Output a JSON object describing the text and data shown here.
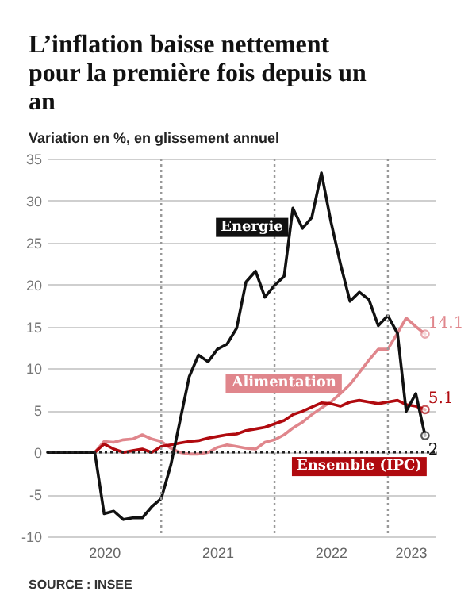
{
  "chart_data": {
    "type": "line",
    "title": "L’inflation baisse nettement pour la première fois depuis un an",
    "subtitle": "Variation en %, en glissement annuel",
    "annotations": [
      "SOURCE : INSEE"
    ],
    "x": [
      "2020-01",
      "2020-02",
      "2020-03",
      "2020-04",
      "2020-05",
      "2020-06",
      "2020-07",
      "2020-08",
      "2020-09",
      "2020-10",
      "2020-11",
      "2020-12",
      "2021-01",
      "2021-02",
      "2021-03",
      "2021-04",
      "2021-05",
      "2021-06",
      "2021-07",
      "2021-08",
      "2021-09",
      "2021-10",
      "2021-11",
      "2021-12",
      "2022-01",
      "2022-02",
      "2022-03",
      "2022-04",
      "2022-05",
      "2022-06",
      "2022-07",
      "2022-08",
      "2022-09",
      "2022-10",
      "2022-11",
      "2022-12",
      "2023-01",
      "2023-02",
      "2023-03",
      "2023-04",
      "2023-05"
    ],
    "series": [
      {
        "name": "Alimentation",
        "color": "#e0868c",
        "values": [
          null,
          null,
          null,
          null,
          null,
          0,
          1.3,
          1.2,
          1.5,
          1.6,
          2.1,
          1.6,
          1.3,
          0.5,
          0,
          -0.2,
          -0.2,
          0,
          0.6,
          0.9,
          0.7,
          0.5,
          0.4,
          1.2,
          1.5,
          2.1,
          2.9,
          3.6,
          4.5,
          5.3,
          6.0,
          7.0,
          8.1,
          9.5,
          11.0,
          12.3,
          12.3,
          14.2,
          16.0,
          15.0,
          14.1
        ],
        "value_labels": [
          null,
          null,
          null,
          null,
          null,
          null,
          null,
          null,
          null,
          null,
          null,
          null,
          null,
          null,
          null,
          null,
          null,
          null,
          null,
          null,
          null,
          null,
          null,
          null,
          null,
          null,
          null,
          null,
          null,
          null,
          null,
          null,
          null,
          null,
          null,
          null,
          null,
          null,
          null,
          null,
          "14.1"
        ]
      },
      {
        "name": "Ensemble (IPC)",
        "color": "#b00a0f",
        "values": [
          null,
          null,
          null,
          null,
          null,
          0,
          1.0,
          0.4,
          0,
          0.2,
          0.4,
          0,
          0.7,
          0.9,
          1.1,
          1.3,
          1.4,
          1.7,
          1.9,
          2.1,
          2.2,
          2.6,
          2.8,
          3.0,
          3.4,
          3.8,
          4.5,
          4.9,
          5.4,
          5.9,
          5.8,
          5.5,
          6.0,
          6.2,
          6.0,
          5.8,
          6.0,
          6.2,
          5.7,
          5.5,
          5.1
        ],
        "value_labels": [
          null,
          null,
          null,
          null,
          null,
          null,
          null,
          null,
          null,
          null,
          null,
          null,
          null,
          null,
          null,
          null,
          null,
          null,
          null,
          null,
          null,
          null,
          null,
          null,
          null,
          null,
          null,
          null,
          null,
          null,
          null,
          null,
          null,
          null,
          null,
          null,
          null,
          null,
          null,
          null,
          "5.1"
        ]
      },
      {
        "name": "Energie",
        "color": "#111111",
        "values": [
          0,
          0,
          0,
          0,
          0,
          0,
          -7.3,
          -7.0,
          -8.0,
          -7.8,
          -7.8,
          -6.5,
          -5.5,
          -1.5,
          3.5,
          9.0,
          11.6,
          10.8,
          12.3,
          12.9,
          14.8,
          20.3,
          21.6,
          18.5,
          19.9,
          21.0,
          29.1,
          26.7,
          28.0,
          33.3,
          27.6,
          22.5,
          18.0,
          19.1,
          18.2,
          15.1,
          16.3,
          14.2,
          4.9,
          7.0,
          2.0
        ],
        "value_labels": [
          null,
          null,
          null,
          null,
          null,
          null,
          null,
          null,
          null,
          null,
          null,
          null,
          null,
          null,
          null,
          null,
          null,
          null,
          null,
          null,
          null,
          null,
          null,
          null,
          null,
          null,
          null,
          null,
          null,
          null,
          null,
          null,
          null,
          null,
          null,
          null,
          null,
          null,
          null,
          null,
          "2"
        ]
      }
    ],
    "xlim": [
      "2020-01",
      "2023-06"
    ],
    "xticks": [
      {
        "value": "2020-07",
        "label": "2020"
      },
      {
        "value": "2021-07",
        "label": "2021"
      },
      {
        "value": "2022-07",
        "label": "2022"
      },
      {
        "value": "2023-03-15",
        "label": "2023"
      }
    ],
    "ylim": [
      -10,
      35
    ],
    "yticks": [
      -10,
      -5,
      0,
      5,
      10,
      15,
      20,
      25,
      30,
      35
    ],
    "grid": "y",
    "legend": false,
    "ref_lines": [
      {
        "axis": "y",
        "value": 0,
        "color": "#222222",
        "line_style": "dotted"
      },
      {
        "axis": "x",
        "value": "2021-01",
        "color": "#999999",
        "line_style": "dotted"
      },
      {
        "axis": "x",
        "value": "2022-01",
        "color": "#999999",
        "line_style": "dotted"
      },
      {
        "axis": "x",
        "value": "2023-01",
        "color": "#999999",
        "line_style": "dotted"
      }
    ],
    "line_style": "solid"
  }
}
